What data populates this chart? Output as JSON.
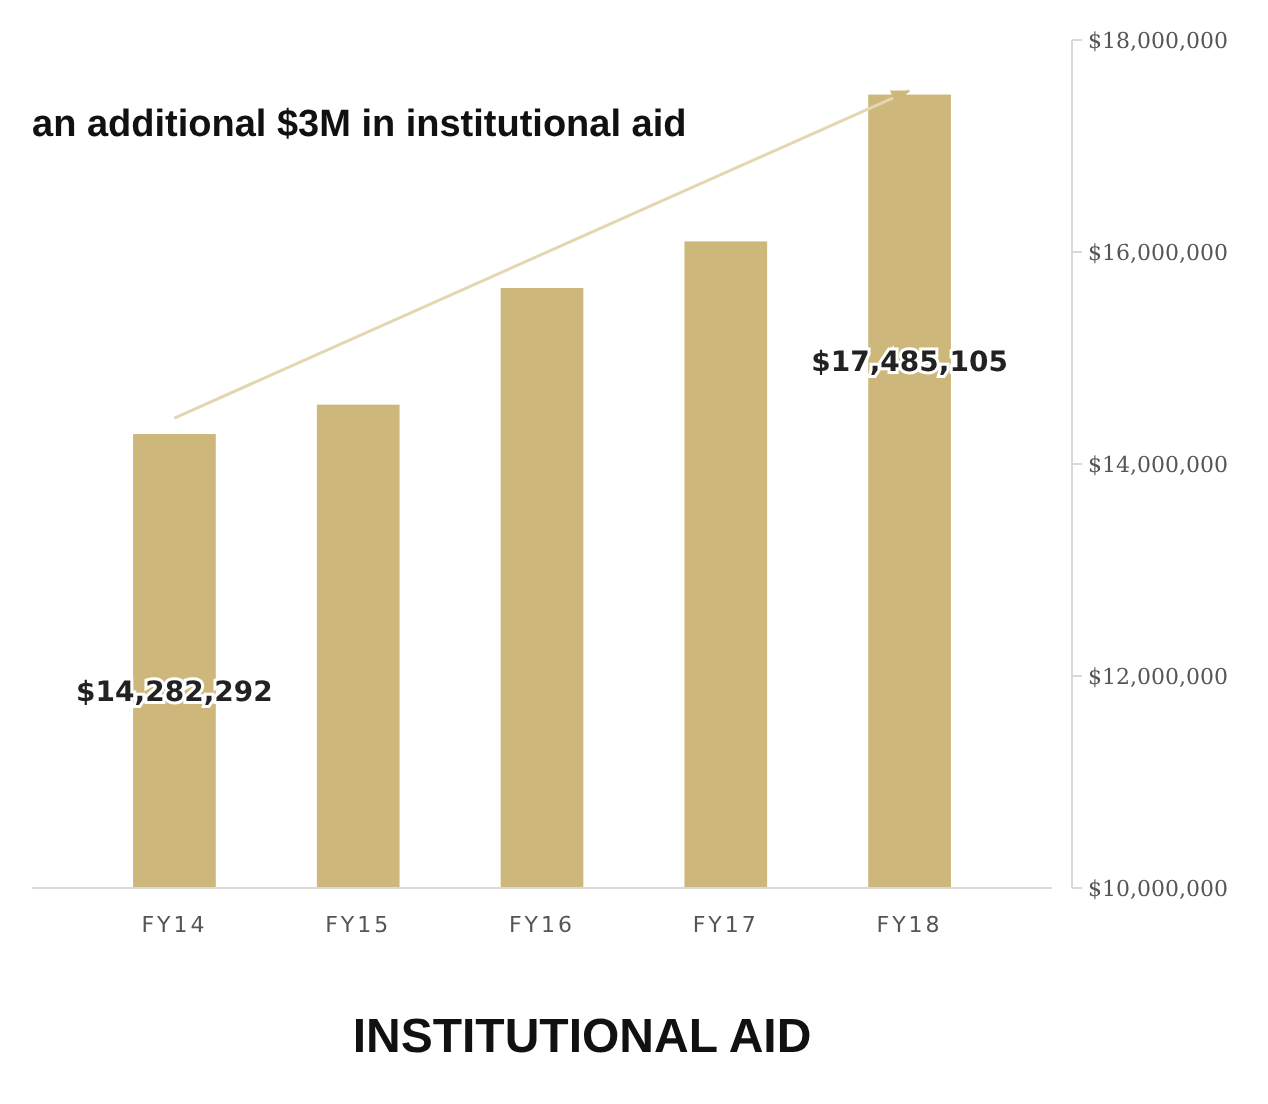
{
  "chart_data": {
    "type": "bar",
    "title": "INSTITUTIONAL AID",
    "categories": [
      "FY14",
      "FY15",
      "FY16",
      "FY17",
      "FY18"
    ],
    "values": [
      14282292,
      14560000,
      15660000,
      16100000,
      17485105
    ],
    "value_labels": [
      "$14,282,292",
      null,
      null,
      null,
      "$17,485,105"
    ],
    "color": "#cdb77a",
    "ylim": [
      10000000,
      18000000
    ],
    "yticks": [
      {
        "value": 10000000,
        "label": "$10,000,000"
      },
      {
        "value": 12000000,
        "label": "$12,000,000"
      },
      {
        "value": 14000000,
        "label": "$14,000,000"
      },
      {
        "value": 16000000,
        "label": "$16,000,000"
      },
      {
        "value": 18000000,
        "label": "$18,000,000"
      }
    ],
    "grid": false,
    "annotations": [
      "an additional $3M in institutional aid"
    ]
  }
}
